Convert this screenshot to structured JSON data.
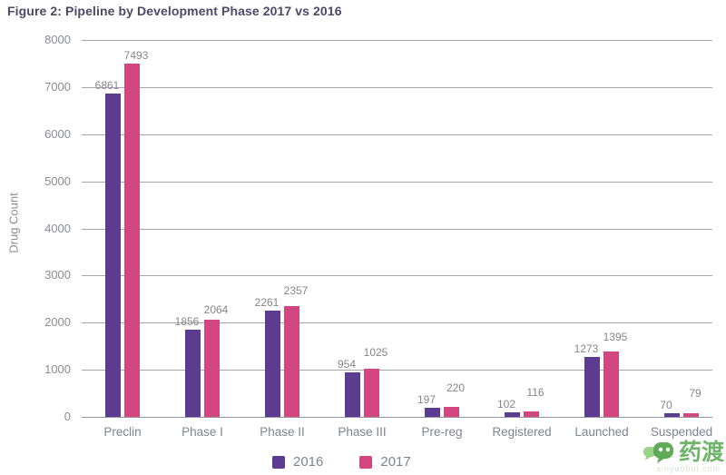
{
  "chart_data": {
    "type": "bar",
    "title": "Figure 2: Pipeline by Development Phase 2017 vs 2016",
    "categories": [
      "Preclin",
      "Phase I",
      "Phase II",
      "Phase III",
      "Pre-reg",
      "Registered",
      "Launched",
      "Suspended"
    ],
    "series": [
      {
        "name": "2016",
        "color": "#5c3c90",
        "values": [
          6861,
          1856,
          2261,
          954,
          197,
          102,
          1273,
          70
        ]
      },
      {
        "name": "2017",
        "color": "#d44680",
        "values": [
          7493,
          2064,
          2357,
          1025,
          220,
          116,
          1395,
          79
        ]
      }
    ],
    "xlabel": "",
    "ylabel": "Drug Count",
    "ylim": [
      0,
      8000
    ],
    "ytick_step": 1000,
    "grid": true,
    "legend_position": "bottom",
    "value_labels": true
  },
  "colors": {
    "title_text": "#4b4a67",
    "axis_text": "#8b8c97",
    "gridline": "#a6a6ae",
    "value_label_text": "#85858f",
    "series_2016": "#5c3c90",
    "series_2017": "#d44680",
    "watermark_green": "#58a74f"
  },
  "watermark": {
    "text": "药渡",
    "subtext": "xinyaohui.com"
  }
}
